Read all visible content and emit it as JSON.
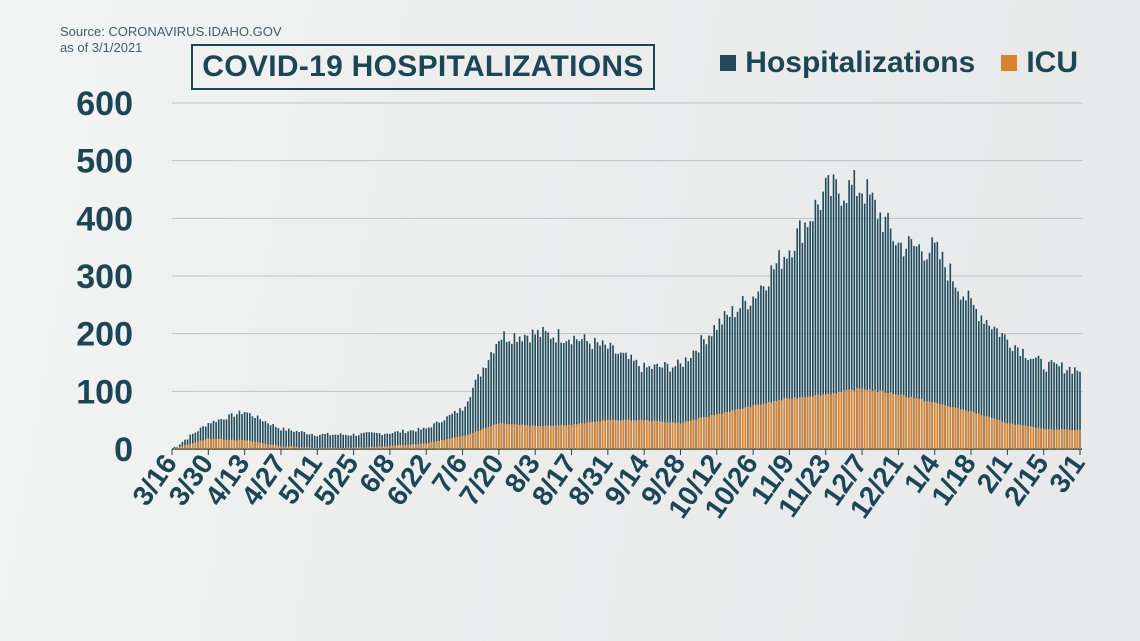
{
  "source": {
    "line1": "Source: CORONAVIRUS.IDAHO.GOV",
    "line2": "as of 3/1/2021"
  },
  "colors": {
    "hospitalizations": "#1f4a5a",
    "icu": "#d9822b",
    "text": "#1d4654",
    "grid": "#bcc3c6"
  },
  "chart_data": {
    "type": "bar",
    "title": "COVID-19 HOSPITALIZATIONS",
    "xlabel": "",
    "ylabel": "",
    "ylim": [
      0,
      600
    ],
    "yticks": [
      0,
      100,
      200,
      300,
      400,
      500,
      600
    ],
    "grid": true,
    "legend_position": "top-right",
    "x_tick_labels": [
      "3/16",
      "3/30",
      "4/13",
      "4/27",
      "5/11",
      "5/25",
      "6/8",
      "6/22",
      "7/6",
      "7/20",
      "8/3",
      "8/17",
      "8/31",
      "9/14",
      "9/28",
      "10/12",
      "10/26",
      "11/9",
      "11/23",
      "12/7",
      "12/21",
      "1/4",
      "1/18",
      "2/1",
      "2/15",
      "3/1"
    ],
    "series": [
      {
        "name": "Hospitalizations",
        "anchors": [
          [
            "3/16",
            0
          ],
          [
            "3/30",
            45
          ],
          [
            "4/13",
            65
          ],
          [
            "4/27",
            35
          ],
          [
            "5/11",
            25
          ],
          [
            "5/25",
            25
          ],
          [
            "6/8",
            28
          ],
          [
            "6/22",
            35
          ],
          [
            "7/6",
            70
          ],
          [
            "7/20",
            195
          ],
          [
            "8/3",
            200
          ],
          [
            "8/17",
            195
          ],
          [
            "8/31",
            175
          ],
          [
            "9/14",
            140
          ],
          [
            "9/28",
            145
          ],
          [
            "10/12",
            215
          ],
          [
            "10/26",
            265
          ],
          [
            "11/9",
            350
          ],
          [
            "11/23",
            445
          ],
          [
            "12/7",
            455
          ],
          [
            "12/21",
            355
          ],
          [
            "1/4",
            345
          ],
          [
            "1/18",
            250
          ],
          [
            "2/1",
            190
          ],
          [
            "2/15",
            145
          ],
          [
            "3/1",
            138
          ]
        ]
      },
      {
        "name": "ICU",
        "anchors": [
          [
            "3/16",
            0
          ],
          [
            "3/30",
            18
          ],
          [
            "4/13",
            15
          ],
          [
            "4/27",
            5
          ],
          [
            "5/11",
            2
          ],
          [
            "5/25",
            2
          ],
          [
            "6/8",
            5
          ],
          [
            "6/22",
            10
          ],
          [
            "7/6",
            22
          ],
          [
            "7/20",
            45
          ],
          [
            "8/3",
            40
          ],
          [
            "8/17",
            42
          ],
          [
            "8/31",
            50
          ],
          [
            "9/14",
            50
          ],
          [
            "9/28",
            45
          ],
          [
            "10/12",
            60
          ],
          [
            "10/26",
            75
          ],
          [
            "11/9",
            88
          ],
          [
            "11/23",
            95
          ],
          [
            "12/7",
            105
          ],
          [
            "12/21",
            95
          ],
          [
            "1/4",
            80
          ],
          [
            "1/18",
            65
          ],
          [
            "2/1",
            45
          ],
          [
            "2/15",
            35
          ],
          [
            "3/1",
            33
          ]
        ]
      }
    ]
  }
}
